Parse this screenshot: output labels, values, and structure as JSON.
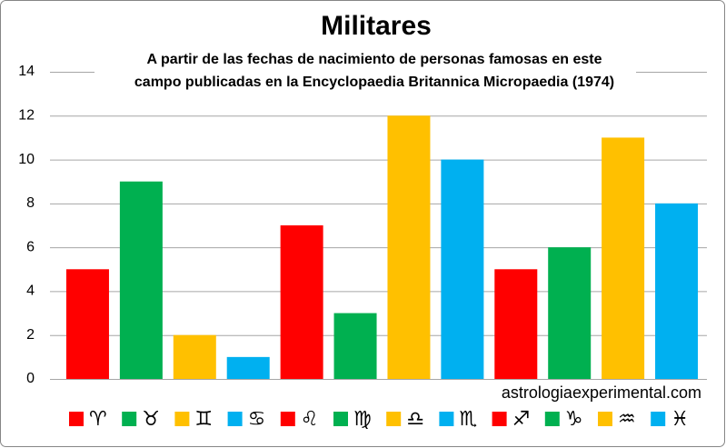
{
  "chart_data": {
    "type": "bar",
    "title": "Militares",
    "subtitle": [
      "A partir de las fechas de nacimiento de personas famosas en este",
      "campo publicadas en la Encyclopaedia Britannica Micropaedia (1974)"
    ],
    "annotation": "astrologiaexperimental.com",
    "categories": [
      "♈",
      "♉",
      "♊",
      "♋",
      "♌",
      "♍",
      "♎",
      "♏",
      "♐",
      "♑",
      "♒",
      "♓"
    ],
    "values": [
      5,
      9,
      2,
      1,
      7,
      3,
      12,
      10,
      5,
      6,
      11,
      8
    ],
    "colors": [
      "#ff0000",
      "#00b050",
      "#ffc000",
      "#00b0f0",
      "#ff0000",
      "#00b050",
      "#ffc000",
      "#00b0f0",
      "#ff0000",
      "#00b050",
      "#ffc000",
      "#00b0f0"
    ],
    "ylim": [
      0,
      14
    ],
    "yticks": [
      0,
      2,
      4,
      6,
      8,
      10,
      12,
      14
    ],
    "grid": true
  }
}
